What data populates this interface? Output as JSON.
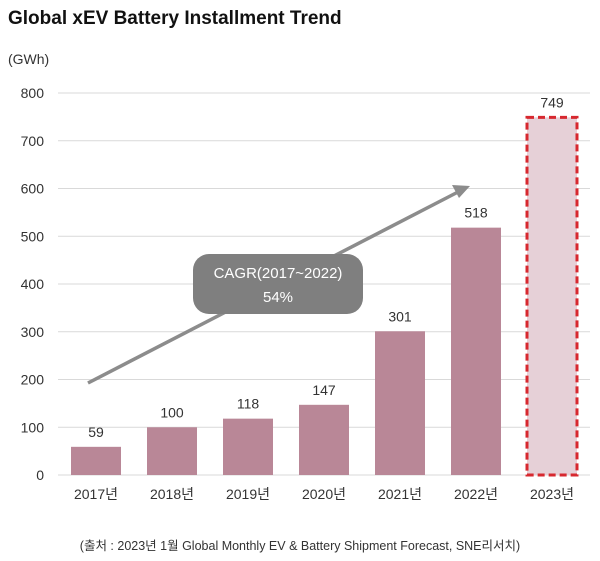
{
  "chart_data": {
    "type": "bar",
    "title": "Global xEV Battery Installment Trend",
    "ylabel": "(GWh)",
    "xlabel": "",
    "categories": [
      "2017년",
      "2018년",
      "2019년",
      "2020년",
      "2021년",
      "2022년",
      "2023년"
    ],
    "values": [
      59,
      100,
      118,
      147,
      301,
      518,
      749
    ],
    "forecast_categories": [
      "2023년"
    ],
    "ylim": [
      0,
      800
    ],
    "yticks": [
      0,
      100,
      200,
      300,
      400,
      500,
      600,
      700,
      800
    ],
    "grid": true,
    "annotation": {
      "line1": "CAGR(2017~2022)",
      "line2": "54%"
    },
    "colors": {
      "bar": "#b98797",
      "forecast_fill": "#e6d0d7",
      "forecast_border": "#d7282f",
      "arrow": "#8c8c8c",
      "callout": "#7f7f7f",
      "grid": "#d9d9d9"
    }
  },
  "source": "(출처 : 2023년 1월 Global Monthly EV & Battery Shipment Forecast, SNE리서치)"
}
